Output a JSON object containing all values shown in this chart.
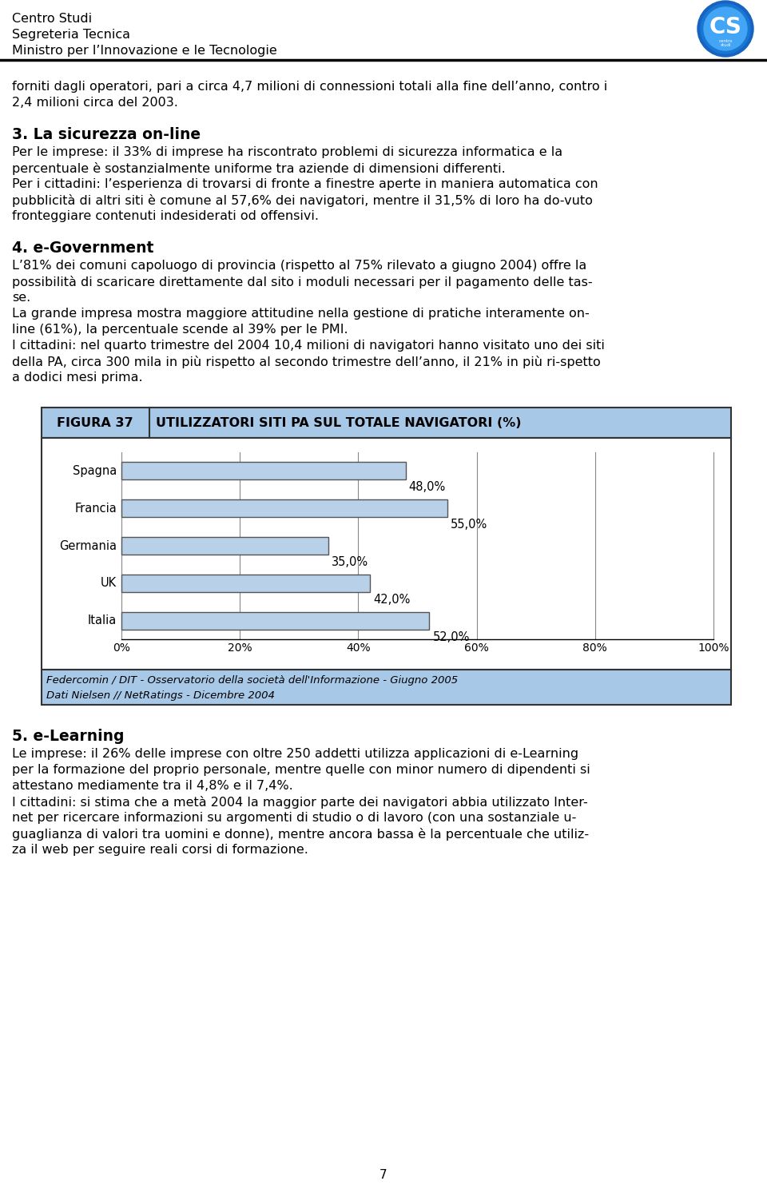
{
  "header_line1": "Centro Studi",
  "header_line2": "Segreteria Tecnica",
  "header_line3": "Ministro per l’Innovazione e le Tecnologie",
  "para1_lines": [
    "forniti dagli operatori, pari a circa 4,7 milioni di connessioni totali alla fine dell’anno, contro i",
    "2,4 milioni circa del 2003."
  ],
  "section3_title": "3. La sicurezza on-line",
  "section3_lines": [
    "Per le imprese: il 33% di imprese ha riscontrato problemi di sicurezza informatica e la",
    "percentuale è sostanzialmente uniforme tra aziende di dimensioni differenti.",
    "Per i cittadini: l’esperienza di trovarsi di fronte a finestre aperte in maniera automatica con",
    "pubblicità di altri siti è comune al 57,6% dei navigatori, mentre il 31,5% di loro ha do-vuto",
    "fronteggiare contenuti indesiderati od offensivi."
  ],
  "section4_title": "4. e-Government",
  "section4_lines": [
    "L’81% dei comuni capoluogo di provincia (rispetto al 75% rilevato a giugno 2004) offre la",
    "possibilità di scaricare direttamente dal sito i moduli necessari per il pagamento delle tas-",
    "se.",
    "La grande impresa mostra maggiore attitudine nella gestione di pratiche interamente on-",
    "line (61%), la percentuale scende al 39% per le PMI.",
    "I cittadini: nel quarto trimestre del 2004 10,4 milioni di navigatori hanno visitato uno dei siti",
    "della PA, circa 300 mila in più rispetto al secondo trimestre dell’anno, il 21% in più ri-spetto",
    "a dodici mesi prima."
  ],
  "figura_label": "FIGURA 37",
  "figura_title": "UTILIZZATORI SITI PA SUL TOTALE NAVIGATORI (%)",
  "categories": [
    "Spagna",
    "Francia",
    "Germania",
    "UK",
    "Italia"
  ],
  "values": [
    48.0,
    55.0,
    35.0,
    42.0,
    52.0
  ],
  "labels": [
    "48,0%",
    "55,0%",
    "35,0%",
    "42,0%",
    "52,0%"
  ],
  "bar_color": "#b8d0e8",
  "bar_edge_color": "#555555",
  "xticks": [
    0,
    20,
    40,
    60,
    80,
    100
  ],
  "xtick_labels": [
    "0%",
    "20%",
    "40%",
    "60%",
    "80%",
    "100%"
  ],
  "footnote1": "Federcomin / DIT - Osservatorio della società dell'Informazione - Giugno 2005",
  "footnote2": "Dati Nielsen // NetRatings - Dicembre 2004",
  "section5_title": "5. e-Learning",
  "section5_lines": [
    "Le imprese: il 26% delle imprese con oltre 250 addetti utilizza applicazioni di e-Learning",
    "per la formazione del proprio personale, mentre quelle con minor numero di dipendenti si",
    "attestano mediamente tra il 4,8% e il 7,4%.",
    "I cittadini: si stima che a metà 2004 la maggior parte dei navigatori abbia utilizzato Inter-",
    "net per ricercare informazioni su argomenti di studio o di lavoro (con una sostanziale u-",
    "guaglianza di valori tra uomini e donne), mentre ancora bassa è la percentuale che utiliz-",
    "za il web per seguire reali corsi di formazione."
  ],
  "page_number": "7",
  "bg_color": "#ffffff",
  "figura_header_bg": "#a8c8e8",
  "footnote_bg": "#a8c8e8",
  "grid_color": "#888888",
  "border_color": "#000000",
  "text_color": "#000000",
  "body_fontsize": 11.5,
  "title_fontsize": 13.5,
  "header_fontsize": 11.5
}
